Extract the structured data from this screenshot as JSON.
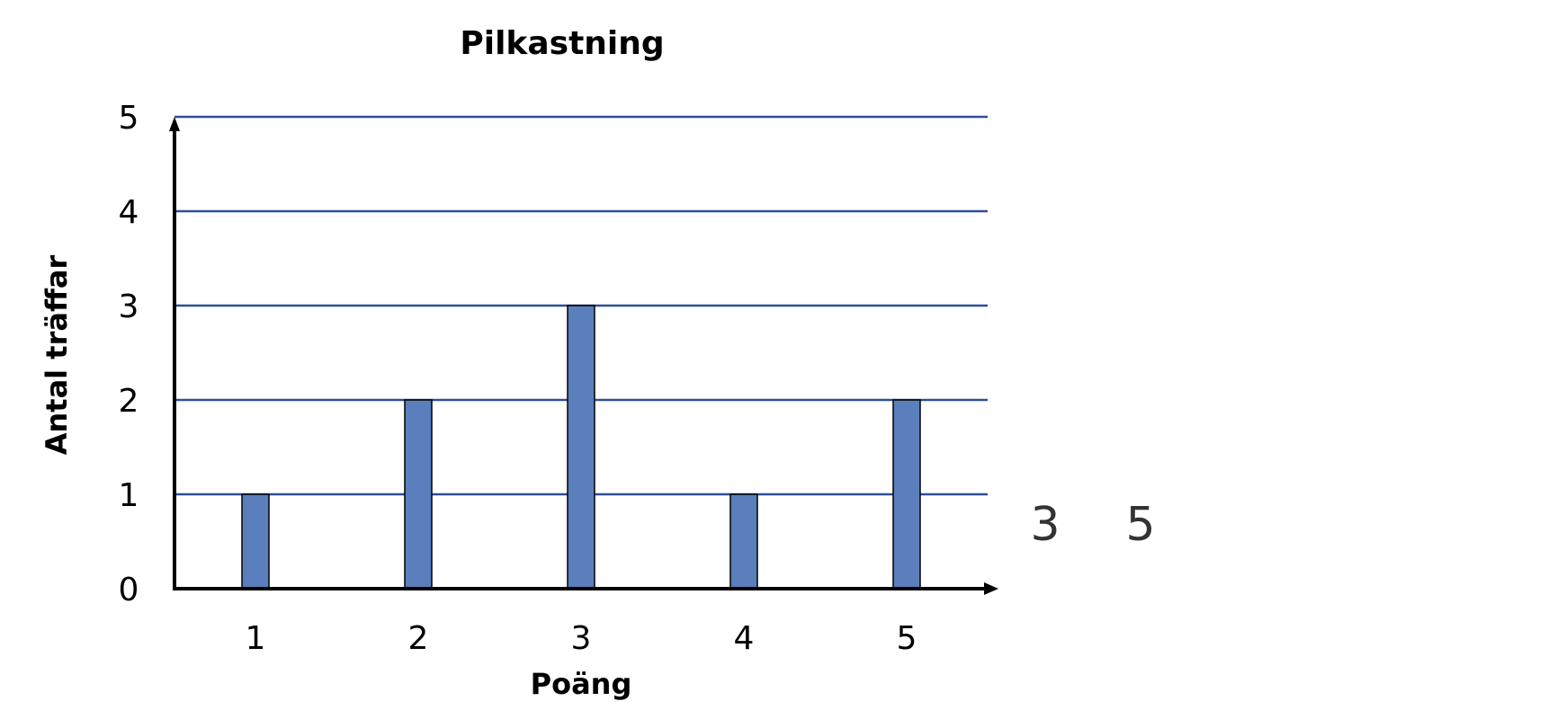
{
  "chart_data": {
    "type": "bar",
    "title": "Pilkastning",
    "xlabel": "Poäng",
    "ylabel": "Antal träffar",
    "categories": [
      "1",
      "2",
      "3",
      "4",
      "5"
    ],
    "values": [
      1,
      2,
      3,
      1,
      2
    ],
    "ylim": [
      0,
      5
    ],
    "yticks": [
      "0",
      "1",
      "2",
      "3",
      "4",
      "5"
    ],
    "grid": true,
    "legend": "none",
    "colors": {
      "bar_fill": "#5b7fbc",
      "bar_stroke": "#000000",
      "grid": "#2f4f96",
      "axis": "#000000"
    }
  },
  "annotations": [
    "3",
    "5"
  ]
}
